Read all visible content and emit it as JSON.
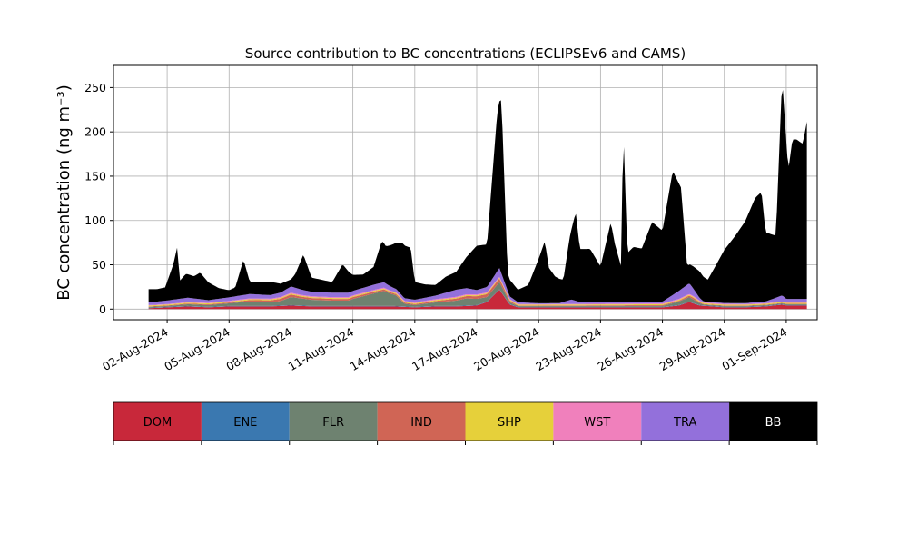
{
  "chart_data": {
    "type": "area",
    "stacked": true,
    "title": "Source contribution to BC concentrations (ECLIPSEv6 and CAMS)",
    "ylabel": "BC concentration (ng m⁻³)",
    "xlabel": "",
    "ylim": [
      -12,
      275
    ],
    "yticks": [
      0,
      50,
      100,
      150,
      200,
      250
    ],
    "x_tick_values": [
      2,
      5,
      8,
      11,
      14,
      17,
      20,
      23,
      26,
      29,
      32
    ],
    "x_tick_labels": [
      "02-Aug-2024",
      "05-Aug-2024",
      "08-Aug-2024",
      "11-Aug-2024",
      "14-Aug-2024",
      "17-Aug-2024",
      "20-Aug-2024",
      "23-Aug-2024",
      "26-Aug-2024",
      "29-Aug-2024",
      "01-Sep-2024"
    ],
    "xlim": [
      -0.6,
      33.5
    ],
    "grid": true,
    "legend": "colorbar-below",
    "series": [
      {
        "name": "DOM",
        "color": "#c8283a",
        "points": [
          [
            1.1,
            1
          ],
          [
            2,
            2
          ],
          [
            3,
            3
          ],
          [
            4,
            2
          ],
          [
            5,
            3
          ],
          [
            6,
            3
          ],
          [
            7,
            3
          ],
          [
            8,
            4
          ],
          [
            9,
            3
          ],
          [
            10,
            3
          ],
          [
            11,
            3
          ],
          [
            12,
            3
          ],
          [
            13,
            3
          ],
          [
            14,
            2
          ],
          [
            15,
            3
          ],
          [
            16,
            3
          ],
          [
            17,
            4
          ],
          [
            17.5,
            8
          ],
          [
            18.1,
            22
          ],
          [
            18.6,
            5
          ],
          [
            19,
            2
          ],
          [
            21,
            2
          ],
          [
            22,
            2
          ],
          [
            24,
            2
          ],
          [
            26,
            2
          ],
          [
            26.8,
            4
          ],
          [
            27.3,
            8
          ],
          [
            27.8,
            4
          ],
          [
            29,
            2
          ],
          [
            30,
            2
          ],
          [
            31,
            3
          ],
          [
            31.8,
            5
          ],
          [
            32,
            4
          ]
        ]
      },
      {
        "name": "ENE",
        "color": "#3a78b0",
        "points": [
          [
            1.1,
            0.5
          ],
          [
            5,
            0.5
          ],
          [
            10,
            0.5
          ],
          [
            15,
            0.5
          ],
          [
            20,
            0.5
          ],
          [
            25,
            0.5
          ],
          [
            30,
            0.5
          ],
          [
            32,
            0.5
          ]
        ]
      },
      {
        "name": "FLR",
        "color": "#6e8270",
        "points": [
          [
            1.1,
            1
          ],
          [
            2,
            1
          ],
          [
            3,
            2
          ],
          [
            4,
            2
          ],
          [
            5,
            3
          ],
          [
            6,
            5
          ],
          [
            7,
            4
          ],
          [
            7.5,
            5
          ],
          [
            8,
            9
          ],
          [
            8.5,
            8
          ],
          [
            9,
            7
          ],
          [
            10,
            6
          ],
          [
            10.8,
            6
          ],
          [
            11,
            8
          ],
          [
            12,
            14
          ],
          [
            12.5,
            17
          ],
          [
            12.8,
            14
          ],
          [
            13.1,
            12
          ],
          [
            13.5,
            3
          ],
          [
            14,
            2
          ],
          [
            15,
            4
          ],
          [
            16,
            6
          ],
          [
            16.5,
            8
          ],
          [
            17,
            7
          ],
          [
            17.5,
            5
          ],
          [
            18.1,
            8
          ],
          [
            18.6,
            2
          ],
          [
            19,
            1
          ],
          [
            21,
            1
          ],
          [
            24,
            1
          ],
          [
            26,
            1
          ],
          [
            26.8,
            4
          ],
          [
            27.3,
            5
          ],
          [
            28,
            1
          ],
          [
            31,
            1
          ],
          [
            32,
            1
          ]
        ]
      },
      {
        "name": "IND",
        "color": "#d06555",
        "points": [
          [
            1.1,
            0.5
          ],
          [
            5,
            1
          ],
          [
            8,
            3
          ],
          [
            8.5,
            2
          ],
          [
            12,
            2
          ],
          [
            14,
            1
          ],
          [
            17,
            3
          ],
          [
            18.1,
            4
          ],
          [
            19,
            0.5
          ],
          [
            26.8,
            1
          ],
          [
            27.5,
            2
          ],
          [
            28,
            0.5
          ],
          [
            32,
            0.5
          ]
        ]
      },
      {
        "name": "SHP",
        "color": "#e6d03a",
        "points": [
          [
            1.1,
            1
          ],
          [
            5,
            1
          ],
          [
            8,
            1
          ],
          [
            12,
            1
          ],
          [
            15,
            1
          ],
          [
            17,
            1
          ],
          [
            18.1,
            1
          ],
          [
            20,
            1
          ],
          [
            25,
            1
          ],
          [
            27,
            1
          ],
          [
            32,
            1
          ]
        ]
      },
      {
        "name": "WST",
        "color": "#f080bc",
        "points": [
          [
            1.1,
            0.5
          ],
          [
            8,
            1
          ],
          [
            12,
            1
          ],
          [
            16,
            1
          ],
          [
            17,
            1
          ],
          [
            18,
            1
          ],
          [
            20,
            0.5
          ],
          [
            27,
            1
          ],
          [
            32,
            0.5
          ]
        ]
      },
      {
        "name": "TRA",
        "color": "#9370db",
        "points": [
          [
            1.1,
            3
          ],
          [
            2,
            4
          ],
          [
            3,
            5
          ],
          [
            4,
            3
          ],
          [
            5,
            4
          ],
          [
            6,
            5
          ],
          [
            7,
            4
          ],
          [
            7.5,
            5
          ],
          [
            8,
            7
          ],
          [
            8.5,
            6
          ],
          [
            9,
            5
          ],
          [
            10,
            5
          ],
          [
            11,
            5
          ],
          [
            12,
            6
          ],
          [
            12.5,
            6
          ],
          [
            13,
            4
          ],
          [
            13.5,
            3
          ],
          [
            14,
            3
          ],
          [
            15,
            4
          ],
          [
            16,
            8
          ],
          [
            16.5,
            7
          ],
          [
            17,
            5
          ],
          [
            17.5,
            6
          ],
          [
            18.1,
            10
          ],
          [
            18.6,
            3
          ],
          [
            19,
            2
          ],
          [
            20,
            1
          ],
          [
            21,
            1
          ],
          [
            21.6,
            5
          ],
          [
            22,
            2
          ],
          [
            23,
            2
          ],
          [
            24,
            2
          ],
          [
            25,
            2
          ],
          [
            26,
            2
          ],
          [
            26.8,
            9
          ],
          [
            27.3,
            12
          ],
          [
            27.8,
            3
          ],
          [
            28,
            1
          ],
          [
            29,
            1
          ],
          [
            30,
            1
          ],
          [
            31,
            2
          ],
          [
            31.5,
            5
          ],
          [
            31.8,
            7
          ],
          [
            32,
            4
          ]
        ]
      },
      {
        "name": "BB",
        "color": "#000000",
        "points": [
          [
            1.1,
            15
          ],
          [
            1.5,
            14
          ],
          [
            1.9,
            15
          ],
          [
            2.3,
            40
          ],
          [
            2.5,
            60
          ],
          [
            2.6,
            20
          ],
          [
            2.9,
            27
          ],
          [
            3.3,
            25
          ],
          [
            3.6,
            30
          ],
          [
            4,
            20
          ],
          [
            4.5,
            12
          ],
          [
            5,
            8
          ],
          [
            5.3,
            10
          ],
          [
            5.7,
            40
          ],
          [
            6,
            14
          ],
          [
            6.5,
            14
          ],
          [
            7,
            15
          ],
          [
            7.5,
            10
          ],
          [
            8,
            8
          ],
          [
            8.2,
            15
          ],
          [
            8.6,
            40
          ],
          [
            9,
            16
          ],
          [
            9.5,
            14
          ],
          [
            10,
            12
          ],
          [
            10.5,
            32
          ],
          [
            11,
            18
          ],
          [
            11.5,
            15
          ],
          [
            12,
            20
          ],
          [
            12.4,
            47
          ],
          [
            12.6,
            42
          ],
          [
            13,
            50
          ],
          [
            13.4,
            60
          ],
          [
            13.8,
            58
          ],
          [
            14,
            20
          ],
          [
            14.5,
            15
          ],
          [
            15,
            12
          ],
          [
            15.5,
            18
          ],
          [
            16,
            20
          ],
          [
            16.5,
            35
          ],
          [
            17,
            50
          ],
          [
            17.5,
            48
          ],
          [
            18.0,
            180
          ],
          [
            18.2,
            196
          ],
          [
            18.5,
            20
          ],
          [
            19,
            14
          ],
          [
            19.5,
            20
          ],
          [
            20,
            50
          ],
          [
            20.3,
            70
          ],
          [
            20.5,
            40
          ],
          [
            20.8,
            30
          ],
          [
            21.2,
            25
          ],
          [
            21.5,
            70
          ],
          [
            21.8,
            100
          ],
          [
            22,
            60
          ],
          [
            22.5,
            60
          ],
          [
            23,
            40
          ],
          [
            23.5,
            90
          ],
          [
            23.7,
            65
          ],
          [
            24,
            40
          ],
          [
            24.1,
            200
          ],
          [
            24.3,
            55
          ],
          [
            24.6,
            62
          ],
          [
            25,
            60
          ],
          [
            25.5,
            90
          ],
          [
            26,
            80
          ],
          [
            26.5,
            140
          ],
          [
            26.9,
            115
          ],
          [
            27.2,
            20
          ],
          [
            27.5,
            25
          ],
          [
            27.8,
            30
          ],
          [
            28.2,
            25
          ],
          [
            28.5,
            38
          ],
          [
            29,
            60
          ],
          [
            29.5,
            75
          ],
          [
            30,
            92
          ],
          [
            30.5,
            118
          ],
          [
            30.8,
            124
          ],
          [
            31,
            78
          ],
          [
            31.5,
            70
          ],
          [
            31.8,
            245
          ],
          [
            32.1,
            145
          ],
          [
            32.3,
            180
          ],
          [
            32.5,
            180
          ],
          [
            32.8,
            175
          ],
          [
            33,
            200
          ]
        ]
      }
    ]
  }
}
